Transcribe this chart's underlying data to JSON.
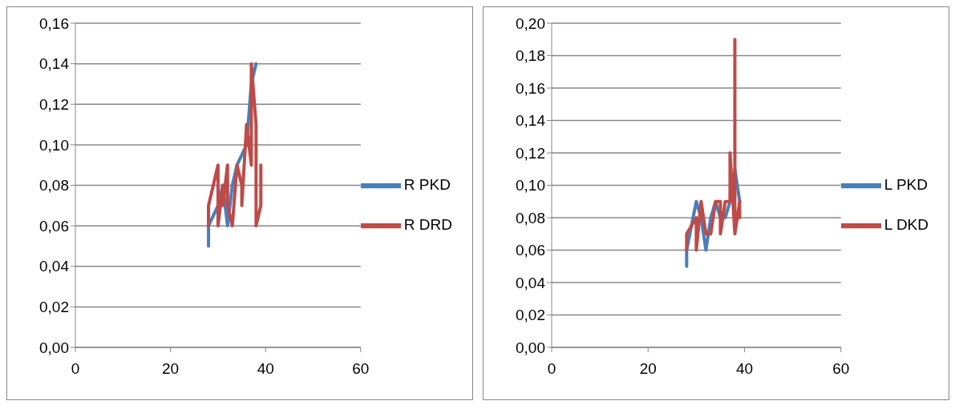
{
  "chart_data": [
    {
      "type": "line",
      "xlim": [
        0,
        60
      ],
      "xticks": [
        0,
        20,
        40,
        60
      ],
      "ylim": [
        0,
        0.16
      ],
      "yticks": [
        {
          "value": 0,
          "label": "0,00"
        },
        {
          "value": 0.02,
          "label": "0,02"
        },
        {
          "value": 0.04,
          "label": "0,04"
        },
        {
          "value": 0.06,
          "label": "0,06"
        },
        {
          "value": 0.08,
          "label": "0,08"
        },
        {
          "value": 0.1,
          "label": "0,10"
        },
        {
          "value": 0.12,
          "label": "0,12"
        },
        {
          "value": 0.14,
          "label": "0,14"
        },
        {
          "value": 0.16,
          "label": "0,16"
        }
      ],
      "grid": "y",
      "legend": "right",
      "marker": "none",
      "line_style": "solid",
      "series": [
        {
          "name": "R PKD",
          "color": "#4a7ebb",
          "x": [
            28,
            28,
            30,
            31,
            32,
            33,
            34,
            36,
            37,
            38
          ],
          "values": [
            0.05,
            0.06,
            0.07,
            0.08,
            0.06,
            0.08,
            0.09,
            0.1,
            0.13,
            0.14
          ]
        },
        {
          "name": "R DRD",
          "color": "#be4b48",
          "x": [
            28,
            28,
            30,
            30,
            31,
            31,
            32,
            32,
            33,
            34,
            35,
            35,
            36,
            37,
            37,
            38,
            38,
            39,
            39
          ],
          "values": [
            0.06,
            0.07,
            0.09,
            0.06,
            0.08,
            0.07,
            0.09,
            0.07,
            0.06,
            0.09,
            0.08,
            0.07,
            0.11,
            0.09,
            0.14,
            0.11,
            0.06,
            0.07,
            0.09
          ]
        }
      ]
    },
    {
      "type": "line",
      "xlim": [
        0,
        60
      ],
      "xticks": [
        0,
        20,
        40,
        60
      ],
      "ylim": [
        0,
        0.2
      ],
      "yticks": [
        {
          "value": 0,
          "label": "0,00"
        },
        {
          "value": 0.02,
          "label": "0,02"
        },
        {
          "value": 0.04,
          "label": "0,04"
        },
        {
          "value": 0.06,
          "label": "0,06"
        },
        {
          "value": 0.08,
          "label": "0,08"
        },
        {
          "value": 0.1,
          "label": "0,10"
        },
        {
          "value": 0.12,
          "label": "0,12"
        },
        {
          "value": 0.14,
          "label": "0,14"
        },
        {
          "value": 0.16,
          "label": "0,16"
        },
        {
          "value": 0.18,
          "label": "0,18"
        },
        {
          "value": 0.2,
          "label": "0,20"
        }
      ],
      "grid": "y",
      "legend": "right",
      "marker": "none",
      "line_style": "solid",
      "series": [
        {
          "name": "L PKD",
          "color": "#4a7ebb",
          "x": [
            28,
            28,
            30,
            31,
            32,
            33,
            34,
            35,
            36,
            37,
            38,
            39
          ],
          "values": [
            0.05,
            0.06,
            0.09,
            0.08,
            0.06,
            0.08,
            0.09,
            0.08,
            0.08,
            0.09,
            0.11,
            0.09
          ]
        },
        {
          "name": "L DKD",
          "color": "#be4b48",
          "x": [
            28,
            28,
            30,
            30,
            31,
            32,
            33,
            34,
            35,
            35,
            36,
            37,
            37,
            38,
            38,
            38,
            39,
            39
          ],
          "values": [
            0.06,
            0.07,
            0.08,
            0.06,
            0.09,
            0.07,
            0.07,
            0.09,
            0.09,
            0.07,
            0.09,
            0.09,
            0.12,
            0.07,
            0.19,
            0.07,
            0.09,
            0.08
          ]
        }
      ]
    }
  ]
}
